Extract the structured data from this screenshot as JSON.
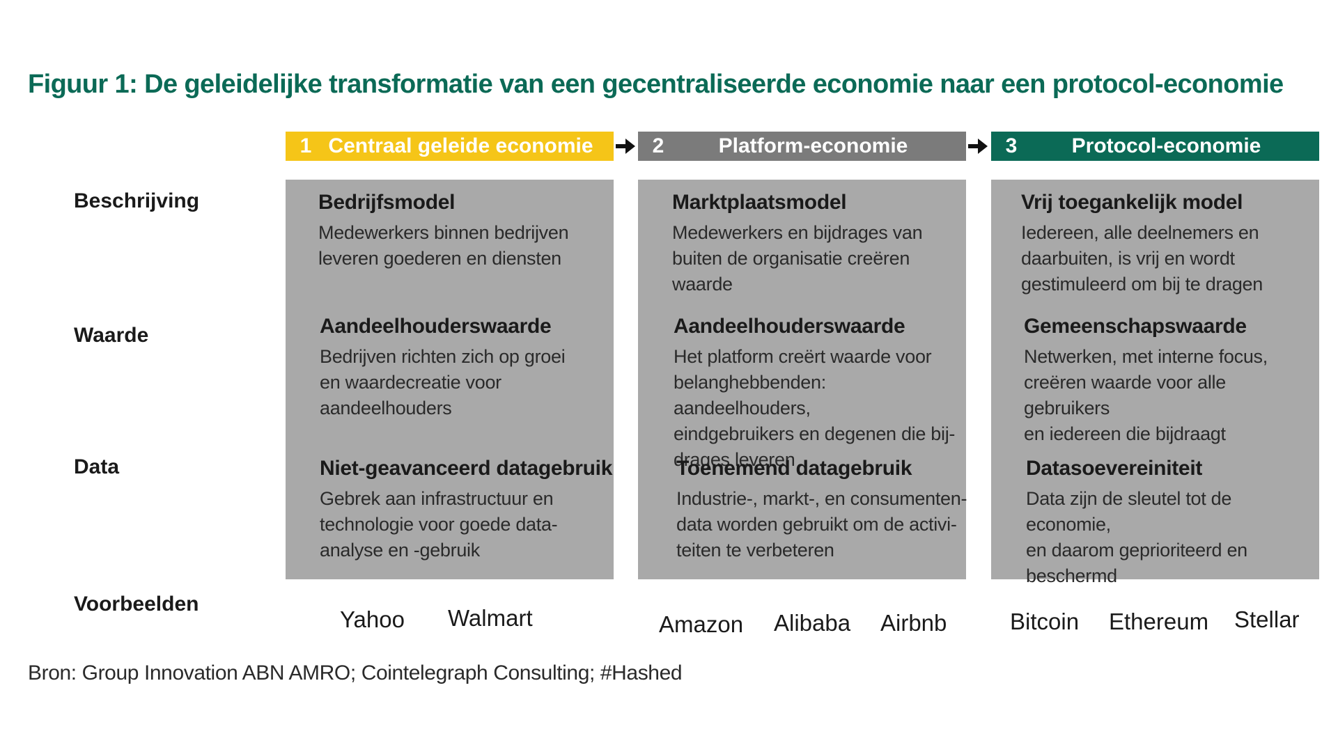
{
  "title": "Figuur 1: De geleidelijke transformatie van een gecentraliseerde economie naar een protocol-economie",
  "colors": {
    "title": "#0b6a56",
    "phase1": "#f5c518",
    "phase2": "#7b7b7b",
    "phase3": "#0b6a56",
    "panel": "#a9a9a9"
  },
  "row_labels": {
    "beschrijving": "Beschrijving",
    "waarde": "Waarde",
    "data": "Data",
    "voorbeelden": "Voorbeelden"
  },
  "arrows": [
    "arrow-right-icon",
    "arrow-right-icon"
  ],
  "phases": [
    {
      "num": "1",
      "name": "Centraal geleide economie",
      "beschrijving": {
        "heading": "Bedrijfsmodel",
        "text": [
          "Medewerkers binnen bedrijven",
          "leveren goederen en diensten"
        ]
      },
      "waarde": {
        "heading": "Aandeelhouderswaarde",
        "text": [
          "Bedrijven richten zich op groei",
          "en waardecreatie voor",
          "aandeelhouders"
        ]
      },
      "data": {
        "heading": "Niet-geavanceerd datagebruik",
        "text": [
          "Gebrek aan infrastructuur en",
          "technologie voor goede data-",
          "analyse en -gebruik"
        ]
      },
      "examples": [
        "Yahoo",
        "Walmart"
      ]
    },
    {
      "num": "2",
      "name": "Platform-economie",
      "beschrijving": {
        "heading": "Marktplaatsmodel",
        "text": [
          "Medewerkers en bijdrages van",
          "buiten de organisatie creëren",
          "waarde"
        ]
      },
      "waarde": {
        "heading": "Aandeelhouderswaarde",
        "text": [
          "Het platform creërt waarde voor",
          "belanghebbenden: aandeelhouders,",
          "eindgebruikers en degenen die bij-",
          "drages leveren"
        ]
      },
      "data": {
        "heading": "Toenemend datagebruik",
        "text": [
          "Industrie-, markt-, en consumenten-",
          "data worden gebruikt om de activi-",
          "teiten te verbeteren"
        ]
      },
      "examples": [
        "Amazon",
        "Alibaba",
        "Airbnb"
      ]
    },
    {
      "num": "3",
      "name": "Protocol-economie",
      "beschrijving": {
        "heading": "Vrij toegankelijk model",
        "text": [
          "Iedereen, alle deelnemers en",
          "daarbuiten, is vrij en wordt",
          "gestimuleerd om bij te dragen"
        ]
      },
      "waarde": {
        "heading": "Gemeenschapswaarde",
        "text": [
          "Netwerken, met interne focus,",
          "creëren waarde voor alle gebruikers",
          "en iedereen die bijdraagt"
        ]
      },
      "data": {
        "heading": "Datasoevereiniteit",
        "text": [
          "Data zijn de sleutel tot de economie,",
          "en daarom geprioriteerd en",
          "beschermd"
        ]
      },
      "examples": [
        "Bitcoin",
        "Ethereum",
        "Stellar"
      ]
    }
  ],
  "source": "Bron: Group Innovation ABN AMRO; Cointelegraph Consulting; #Hashed"
}
